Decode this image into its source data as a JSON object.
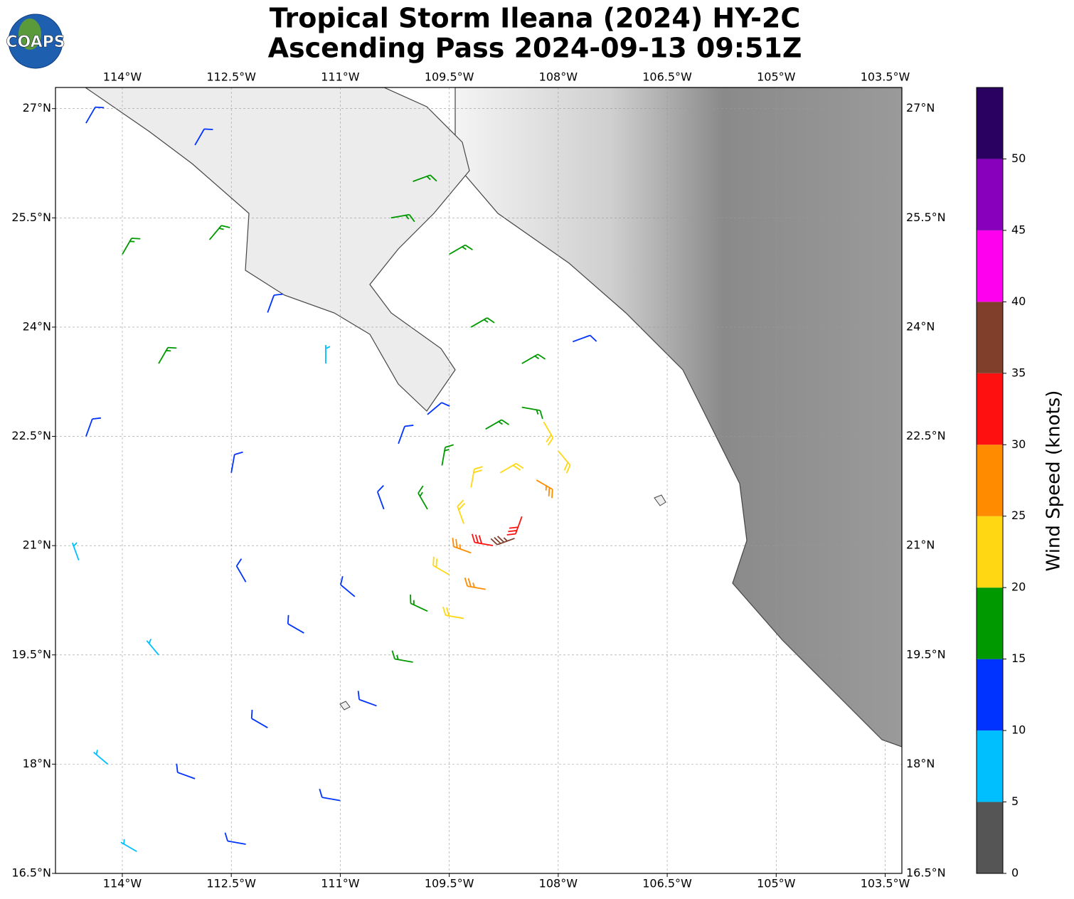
{
  "logo_text": "COAPS",
  "title": "Tropical Storm Ileana (2024) HY-2C",
  "subtitle": "Ascending Pass 2024-09-13 09:51Z",
  "map": {
    "xlim": [
      -114.92,
      -103.27
    ],
    "ylim": [
      16.5,
      27.29
    ],
    "xticks": [
      {
        "value": -114,
        "label": "114°W"
      },
      {
        "value": -112.5,
        "label": "112.5°W"
      },
      {
        "value": -111,
        "label": "111°W"
      },
      {
        "value": -109.5,
        "label": "109.5°W"
      },
      {
        "value": -108,
        "label": "108°W"
      },
      {
        "value": -106.5,
        "label": "106.5°W"
      },
      {
        "value": -105,
        "label": "105°W"
      },
      {
        "value": -103.5,
        "label": "103.5°W"
      }
    ],
    "yticks": [
      {
        "value": 27,
        "label": "27°N"
      },
      {
        "value": 25.5,
        "label": "25.5°N"
      },
      {
        "value": 24,
        "label": "24°N"
      },
      {
        "value": 22.5,
        "label": "22.5°N"
      },
      {
        "value": 21,
        "label": "21°N"
      },
      {
        "value": 19.5,
        "label": "19.5°N"
      },
      {
        "value": 18,
        "label": "18°N"
      },
      {
        "value": 16.5,
        "label": "16.5°N"
      }
    ],
    "grid": true
  },
  "wind": {
    "lon": [
      -108.6,
      -108.5,
      -108.9,
      -109.2,
      -109.3,
      -109.2,
      -108.8,
      -108.3,
      -108.0,
      -108.2,
      -109.8,
      -109.6,
      -109.0,
      -108.5,
      -109.5,
      -109.0,
      -109.8,
      -109.3,
      -110.4,
      -110.2,
      -109.8,
      -110.8,
      -110.0,
      -110.5,
      -109.2,
      -108.5,
      -107.8,
      -110.0,
      -110.3,
      -109.5,
      -113.0,
      -114.5,
      -114.0,
      -112.8,
      -112.0,
      -113.5,
      -114.5,
      -112.5,
      -111.2,
      -114.6,
      -113.5,
      -112.3,
      -111.5,
      -114.2,
      -113.0,
      -112.0,
      -111.0,
      -113.8,
      -112.3
    ],
    "lat": [
      21.1,
      21.4,
      21.0,
      20.9,
      21.3,
      21.8,
      22.0,
      21.9,
      22.3,
      22.7,
      21.5,
      22.1,
      22.6,
      22.9,
      20.6,
      20.4,
      20.1,
      20.0,
      21.5,
      22.4,
      22.8,
      20.3,
      19.4,
      18.8,
      24.0,
      23.5,
      23.8,
      26.0,
      25.5,
      25.0,
      26.5,
      26.8,
      25.0,
      25.2,
      24.2,
      23.5,
      22.5,
      22.0,
      23.5,
      20.8,
      19.5,
      20.5,
      19.8,
      18.0,
      17.8,
      18.5,
      17.5,
      16.8,
      16.9
    ],
    "speed": [
      37,
      33,
      32,
      28,
      22,
      23,
      24,
      27,
      22,
      22,
      17,
      17,
      18,
      17,
      22,
      26,
      17,
      21,
      14,
      13,
      10,
      13,
      16,
      13,
      17,
      17,
      14,
      17,
      16,
      18,
      13,
      13,
      16,
      17,
      12,
      16,
      12,
      12,
      8,
      8,
      8,
      12,
      12,
      8,
      12,
      12,
      12,
      8,
      12
    ],
    "direction": [
      250,
      200,
      280,
      290,
      340,
      10,
      60,
      120,
      140,
      150,
      330,
      10,
      60,
      100,
      300,
      280,
      295,
      280,
      340,
      20,
      50,
      310,
      280,
      290,
      60,
      60,
      70,
      70,
      80,
      60,
      30,
      30,
      30,
      40,
      20,
      30,
      20,
      10,
      0,
      340,
      320,
      330,
      300,
      310,
      290,
      300,
      280,
      300,
      280
    ]
  },
  "colorbar": {
    "label": "Wind Speed (knots)",
    "bounds": [
      0,
      5,
      10,
      15,
      20,
      25,
      30,
      35,
      40,
      45,
      50,
      55
    ],
    "colors": [
      "#555555",
      "#00bfff",
      "#0033ff",
      "#009900",
      "#ffd712",
      "#ff8c00",
      "#ff1010",
      "#7f3f2a",
      "#ff00ee",
      "#8800bb",
      "#2a0060"
    ],
    "ticks": [
      0,
      5,
      10,
      15,
      20,
      25,
      30,
      35,
      40,
      45,
      50
    ]
  }
}
